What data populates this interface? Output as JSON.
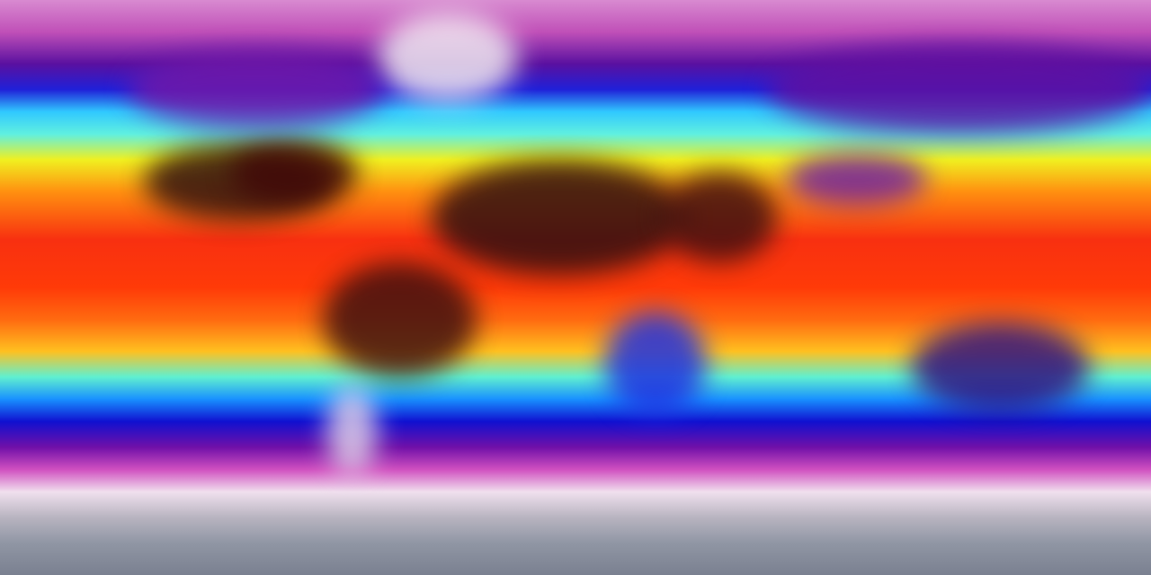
{
  "map": {
    "projection": "equirectangular",
    "kind": "global temperature field",
    "colormap": [
      "#8a8f9c",
      "#e8e0ea",
      "#c020b0",
      "#6a0a9a",
      "#1010e0",
      "#20e8ff",
      "#f8f820",
      "#ff8000",
      "#f01010",
      "#a00000",
      "#202020"
    ]
  },
  "bands": [
    {
      "lat": 90,
      "color": "#d88ad0"
    },
    {
      "lat": 80,
      "color": "#c050b8"
    },
    {
      "lat": 70,
      "color": "#5a10a0"
    },
    {
      "lat": 62,
      "color": "#2020d8"
    },
    {
      "lat": 55,
      "color": "#30c8ff"
    },
    {
      "lat": 48,
      "color": "#60f0e0"
    },
    {
      "lat": 40,
      "color": "#f0f020"
    },
    {
      "lat": 30,
      "color": "#ff9010"
    },
    {
      "lat": 15,
      "color": "#f83010"
    },
    {
      "lat": 0,
      "color": "#ff3a08"
    },
    {
      "lat": -10,
      "color": "#ff6a10"
    },
    {
      "lat": -20,
      "color": "#ffc020"
    },
    {
      "lat": -28,
      "color": "#60f0d0"
    },
    {
      "lat": -35,
      "color": "#1890ff"
    },
    {
      "lat": -42,
      "color": "#1010d0"
    },
    {
      "lat": -50,
      "color": "#7010a8"
    },
    {
      "lat": -57,
      "color": "#d050c0"
    },
    {
      "lat": -64,
      "color": "#f0e0ee"
    },
    {
      "lat": -72,
      "color": "#b8b4c0"
    },
    {
      "lat": -80,
      "color": "#9096a4"
    },
    {
      "lat": -90,
      "color": "#7a8090"
    }
  ],
  "regions": [
    {
      "name": "sahara",
      "lon": -5,
      "lat": 22,
      "w": 40,
      "h": 18,
      "color": "#301010"
    },
    {
      "name": "arabia",
      "lon": 45,
      "lat": 22,
      "w": 18,
      "h": 14,
      "color": "#401010"
    },
    {
      "name": "tibet",
      "lon": 88,
      "lat": 34,
      "w": 22,
      "h": 8,
      "color": "#7020a0"
    },
    {
      "name": "siberia",
      "lon": 120,
      "lat": 62,
      "w": 60,
      "h": 14,
      "color": "#6010a0"
    },
    {
      "name": "north-america-south",
      "lon": -105,
      "lat": 33,
      "w": 30,
      "h": 12,
      "color": "#301010"
    },
    {
      "name": "central-us",
      "lon": -88,
      "lat": 36,
      "w": 20,
      "h": 10,
      "color": "#400808"
    },
    {
      "name": "greenland",
      "lon": -40,
      "lat": 72,
      "w": 22,
      "h": 14,
      "color": "#f0e8f0"
    },
    {
      "name": "canada",
      "lon": -100,
      "lat": 62,
      "w": 40,
      "h": 12,
      "color": "#7018a8"
    },
    {
      "name": "amazon",
      "lon": -55,
      "lat": -10,
      "w": 24,
      "h": 18,
      "color": "#401010"
    },
    {
      "name": "southern-africa",
      "lon": 25,
      "lat": -24,
      "w": 16,
      "h": 16,
      "color": "#2030e0"
    },
    {
      "name": "australia",
      "lon": 133,
      "lat": -25,
      "w": 28,
      "h": 14,
      "color": "#301080"
    },
    {
      "name": "patagonia",
      "lon": -70,
      "lat": -45,
      "w": 8,
      "h": 14,
      "color": "#e0d0e8"
    }
  ]
}
